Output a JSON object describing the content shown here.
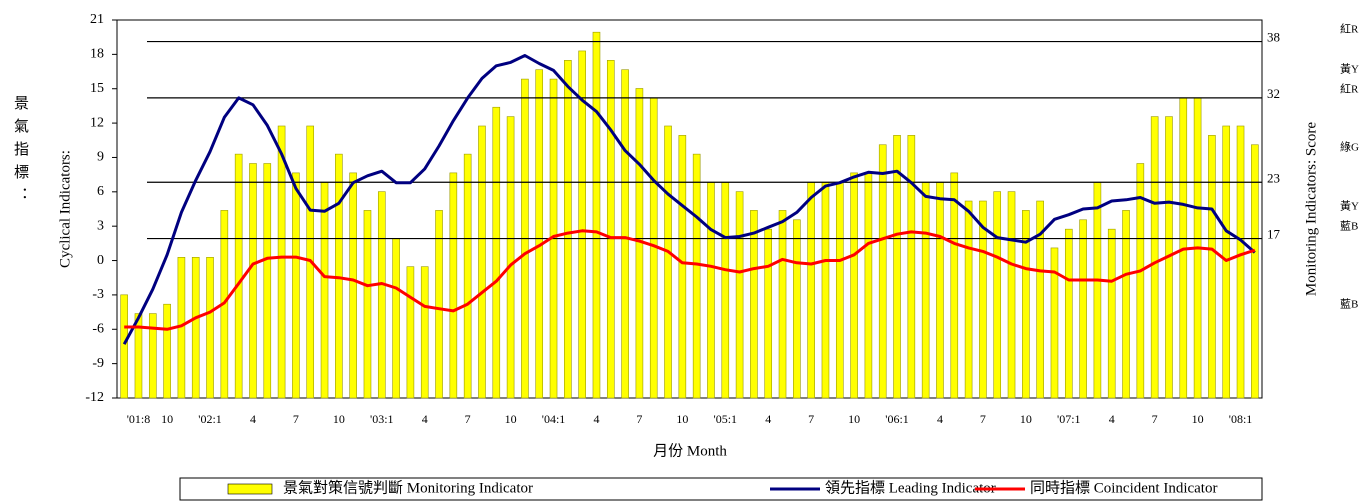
{
  "chart_data": {
    "type": "bar",
    "categories": [
      null,
      "'01:8",
      null,
      "10",
      null,
      null,
      "'02:1",
      null,
      null,
      "4",
      null,
      null,
      "7",
      null,
      null,
      "10",
      null,
      null,
      "'03:1",
      null,
      null,
      "4",
      null,
      null,
      "7",
      null,
      null,
      "10",
      null,
      null,
      "'04:1",
      null,
      null,
      "4",
      null,
      null,
      "7",
      null,
      null,
      "10",
      null,
      null,
      "'05:1",
      null,
      null,
      "4",
      null,
      null,
      "7",
      null,
      null,
      "10",
      null,
      null,
      "'06:1",
      null,
      null,
      "4",
      null,
      null,
      "7",
      null,
      null,
      "10",
      null,
      null,
      "'07:1",
      null,
      null,
      "4",
      null,
      null,
      "7",
      null,
      null,
      "10",
      null,
      null,
      "'08:1",
      null
    ],
    "series": [
      {
        "name": "景氣對策信號判斷 Monitoring Indicator",
        "type": "bar",
        "axis": "y2",
        "color": "#ffff00",
        "values": [
          11,
          9,
          9,
          10,
          15,
          15,
          15,
          20,
          26,
          25,
          25,
          29,
          24,
          29,
          23,
          26,
          24,
          20,
          22,
          17,
          14,
          14,
          20,
          24,
          26,
          29,
          31,
          30,
          34,
          35,
          34,
          36,
          37,
          39,
          36,
          35,
          33,
          32,
          29,
          28,
          26,
          23,
          23,
          22,
          20,
          18,
          20,
          19,
          23,
          23,
          23,
          24,
          24,
          27,
          28,
          28,
          23,
          23,
          24,
          21,
          21,
          22,
          22,
          20,
          21,
          16,
          18,
          19,
          23,
          18,
          20,
          25,
          30,
          30,
          32,
          32,
          28,
          29,
          29,
          27
        ]
      },
      {
        "name": "領先指標 Leading Indicator",
        "type": "line",
        "color": "#000080",
        "values": [
          -7.3,
          -5,
          -2.5,
          0.5,
          4.2,
          7,
          9.5,
          12.5,
          14.2,
          13.6,
          11.8,
          9.3,
          6.3,
          4.4,
          4.3,
          5,
          6.8,
          7.4,
          7.8,
          6.8,
          6.8,
          8,
          10,
          12.2,
          14.2,
          15.9,
          17,
          17.3,
          17.9,
          17.2,
          16.6,
          15.2,
          14,
          13,
          11.4,
          9.6,
          8.4,
          7,
          5.8,
          4.8,
          3.8,
          2.7,
          2,
          2.1,
          2.4,
          2.9,
          3.4,
          4.2,
          5.5,
          6.5,
          6.8,
          7.3,
          7.7,
          7.6,
          7.8,
          6.8,
          5.6,
          5.4,
          5.3,
          4.3,
          2.9,
          2,
          1.8,
          1.6,
          2.3,
          3.6,
          4,
          4.5,
          4.6,
          5.2,
          5.3,
          5.5,
          5,
          5.1,
          4.9,
          4.6,
          4.5,
          2.6,
          1.8,
          0.7
        ]
      },
      {
        "name": "同時指標 Coincident Indicator",
        "type": "line",
        "color": "#ff0000",
        "values": [
          -5.8,
          -5.8,
          -5.9,
          -6,
          -5.7,
          -5,
          -4.5,
          -3.7,
          -2,
          -0.3,
          0.2,
          0.3,
          0.3,
          0,
          -1.4,
          -1.5,
          -1.7,
          -2.2,
          -2,
          -2.4,
          -3.2,
          -4,
          -4.2,
          -4.4,
          -3.8,
          -2.8,
          -1.8,
          -0.4,
          0.6,
          1.3,
          2.1,
          2.4,
          2.6,
          2.5,
          2,
          2,
          1.7,
          1.3,
          0.8,
          -0.2,
          -0.3,
          -0.5,
          -0.8,
          -1,
          -0.7,
          -0.5,
          0.1,
          -0.2,
          -0.3,
          0,
          0,
          0.5,
          1.5,
          1.9,
          2.3,
          2.5,
          2.4,
          2.1,
          1.5,
          1.1,
          0.8,
          0.3,
          -0.3,
          -0.7,
          -0.9,
          -1,
          -1.7,
          -1.7,
          -1.7,
          -1.8,
          -1.2,
          -0.9,
          -0.2,
          0.4,
          1,
          1.1,
          1,
          0,
          0.5,
          0.9
        ]
      }
    ],
    "ylim": [
      -12,
      21
    ],
    "yticks": [
      -12,
      -9,
      -6,
      -3,
      0,
      3,
      6,
      9,
      12,
      15,
      18,
      21
    ],
    "y2lim": [
      0,
      40.3
    ],
    "y2ticks": [
      17,
      23,
      32,
      38
    ],
    "y2grid": true,
    "xlabel": "月份 Month",
    "ylabel": "Cyclical Indicators:",
    "ylabel_zh": "景氣指標：",
    "y2label": "Monitoring Indicators: Score",
    "annotations": [
      "紅R",
      "黃Y",
      "紅R",
      "綠G",
      "黃Y",
      "藍B",
      "藍B"
    ]
  }
}
